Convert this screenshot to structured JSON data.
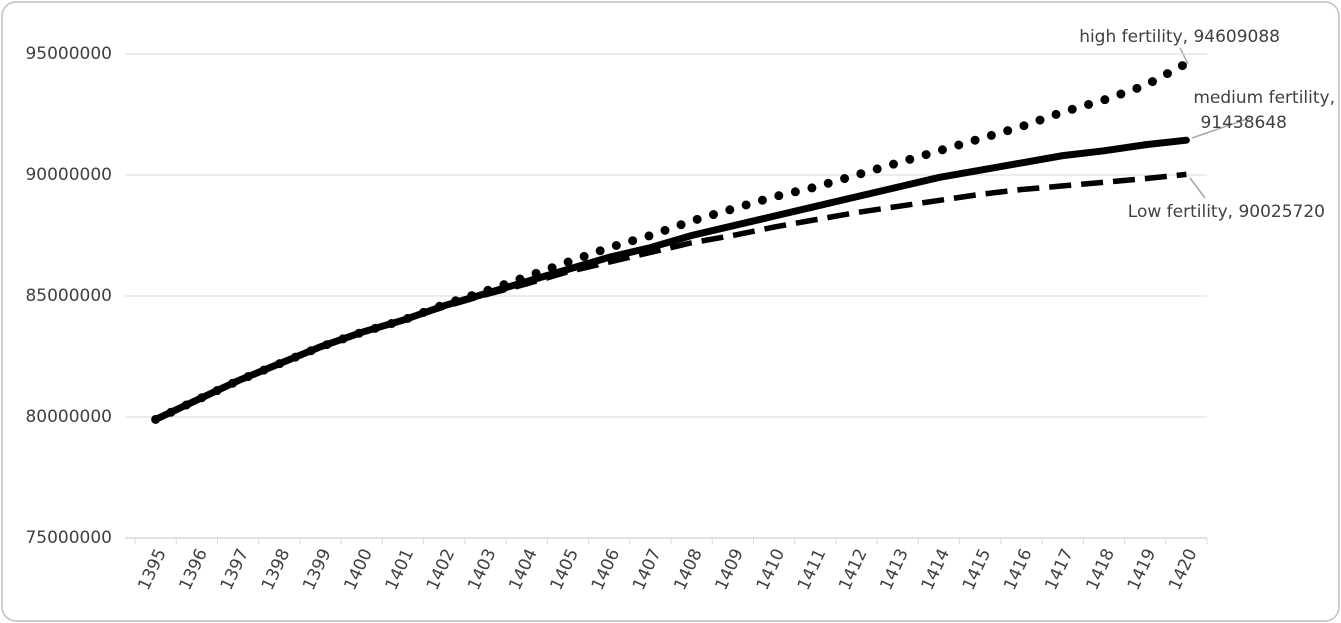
{
  "chart_data": {
    "type": "line",
    "categories": [
      "1395",
      "1396",
      "1397",
      "1398",
      "1399",
      "1400",
      "1401",
      "1402",
      "1403",
      "1404",
      "1405",
      "1406",
      "1407",
      "1408",
      "1409",
      "1410",
      "1411",
      "1412",
      "1413",
      "1414",
      "1415",
      "1416",
      "1417",
      "1418",
      "1419",
      "1420"
    ],
    "series": [
      {
        "name": "high fertility",
        "color": "#000000",
        "style": "dotted",
        "values": [
          79900000,
          80700000,
          81500000,
          82200000,
          82900000,
          83500000,
          84000000,
          84650000,
          85200000,
          85800000,
          86400000,
          87000000,
          87500000,
          88100000,
          88600000,
          89100000,
          89500000,
          90000000,
          90500000,
          91000000,
          91500000,
          92000000,
          92600000,
          93100000,
          93700000,
          94609088
        ]
      },
      {
        "name": "medium fertility",
        "color": "#000000",
        "style": "solid",
        "values": [
          79900000,
          80700000,
          81500000,
          82200000,
          82900000,
          83500000,
          84000000,
          84600000,
          85100000,
          85600000,
          86100000,
          86600000,
          87000000,
          87500000,
          87900000,
          88300000,
          88700000,
          89100000,
          89500000,
          89900000,
          90200000,
          90500000,
          90800000,
          91000000,
          91250000,
          91438648
        ]
      },
      {
        "name": "Low fertility",
        "color": "#000000",
        "style": "dashed",
        "values": [
          79900000,
          80700000,
          81500000,
          82200000,
          82900000,
          83500000,
          84000000,
          84550000,
          85050000,
          85500000,
          86000000,
          86400000,
          86800000,
          87200000,
          87500000,
          87850000,
          88150000,
          88450000,
          88700000,
          88950000,
          89200000,
          89400000,
          89550000,
          89700000,
          89850000,
          90025720
        ]
      }
    ],
    "ylim": [
      75000000,
      95000000
    ],
    "yticks": [
      75000000,
      80000000,
      85000000,
      90000000,
      95000000
    ],
    "grid": true
  }
}
